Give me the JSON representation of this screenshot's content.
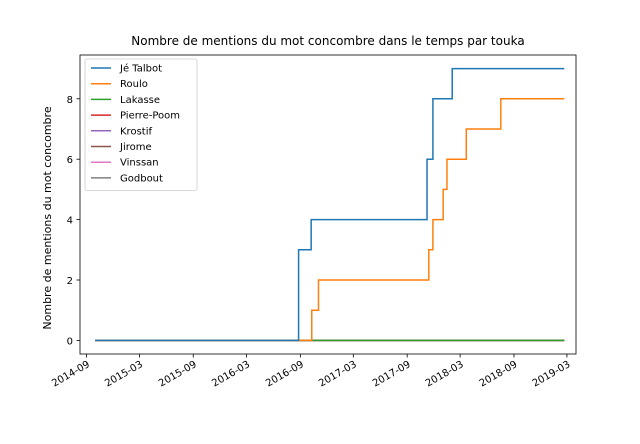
{
  "chart_data": {
    "type": "line",
    "step": "post",
    "title": "Nombre de mentions du mot concombre dans le temps par touka",
    "xlabel": "",
    "ylabel": "Nombre de mentions du mot concombre",
    "x_type": "date",
    "xlim": [
      "2014-08-10",
      "2019-04-01"
    ],
    "ylim": [
      -0.45,
      9.45
    ],
    "x_ticks": [
      "2014-09",
      "2015-03",
      "2015-09",
      "2016-03",
      "2016-09",
      "2017-03",
      "2017-09",
      "2018-03",
      "2018-09",
      "2019-03"
    ],
    "y_ticks": [
      0,
      2,
      4,
      6,
      8
    ],
    "grid": false,
    "legend_position": "top-left",
    "series": [
      {
        "name": "Jé Talbot",
        "color": "#1f77b4",
        "x": [
          "2014-10-01",
          "2016-08-26",
          "2016-10-08",
          "2017-11-08",
          "2017-11-28",
          "2018-02-02",
          "2019-02-20"
        ],
        "y": [
          0,
          3,
          4,
          6,
          8,
          9,
          9
        ]
      },
      {
        "name": "Roulo",
        "color": "#ff7f0e",
        "x": [
          "2014-10-01",
          "2016-10-10",
          "2016-11-02",
          "2017-11-14",
          "2017-11-28",
          "2018-01-02",
          "2018-01-15",
          "2018-02-02",
          "2018-03-22",
          "2018-07-18",
          "2019-02-20"
        ],
        "y": [
          0,
          1,
          2,
          3,
          4,
          5,
          6,
          6,
          7,
          8,
          8
        ]
      },
      {
        "name": "Lakasse",
        "color": "#2ca02c",
        "x": [
          "2014-10-01",
          "2019-02-20"
        ],
        "y": [
          0,
          0
        ]
      },
      {
        "name": "Pierre-Poom",
        "color": "#d62728",
        "x": [
          "2014-10-01",
          "2019-02-20"
        ],
        "y": [
          0,
          0
        ]
      },
      {
        "name": "Krostif",
        "color": "#9467bd",
        "x": [
          "2014-10-01",
          "2019-02-20"
        ],
        "y": [
          0,
          0
        ]
      },
      {
        "name": "Jirome",
        "color": "#8c564b",
        "x": [
          "2014-10-01",
          "2019-02-20"
        ],
        "y": [
          0,
          0
        ]
      },
      {
        "name": "Vinssan",
        "color": "#e377c2",
        "x": [
          "2014-10-01",
          "2019-02-20"
        ],
        "y": [
          0,
          0
        ]
      },
      {
        "name": "Godbout",
        "color": "#7f7f7f",
        "x": [
          "2014-10-01",
          "2019-02-20"
        ],
        "y": [
          0,
          0
        ]
      }
    ]
  }
}
